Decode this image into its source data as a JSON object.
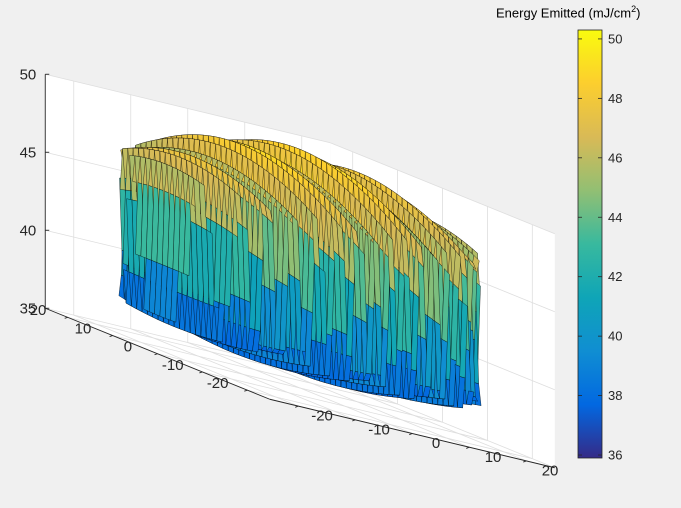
{
  "chart_data": {
    "type": "surface",
    "description_axes": {
      "x": {
        "ticks": [
          "-20",
          "-10",
          "0",
          "10",
          "20"
        ],
        "range": [
          -25,
          25
        ]
      },
      "y": {
        "ticks": [
          "-20",
          "-10",
          "0",
          "10",
          "20"
        ],
        "range": [
          -25,
          25
        ]
      },
      "z": {
        "ticks": [
          "35",
          "40",
          "45",
          "50"
        ],
        "range": [
          35,
          50
        ]
      }
    },
    "grid": true,
    "colormap": "parula",
    "colorbar": {
      "title_prefix": "Energy Emitted (mJ/cm",
      "title_sup": "2",
      "title_suffix": ")",
      "ticks": [
        "36",
        "38",
        "40",
        "42",
        "44",
        "46",
        "48",
        "50"
      ],
      "range": [
        35.9,
        50.3
      ],
      "placement": "right"
    },
    "surface": {
      "domain": "disk",
      "radius": 25,
      "z_min": 35.9,
      "z_max": 50.3,
      "peak_center": 50.3,
      "peak_edge": 46.9,
      "trough_center": 35.9,
      "trough_edge": 37.3,
      "ridge_period_along_x": 2.6
    }
  }
}
